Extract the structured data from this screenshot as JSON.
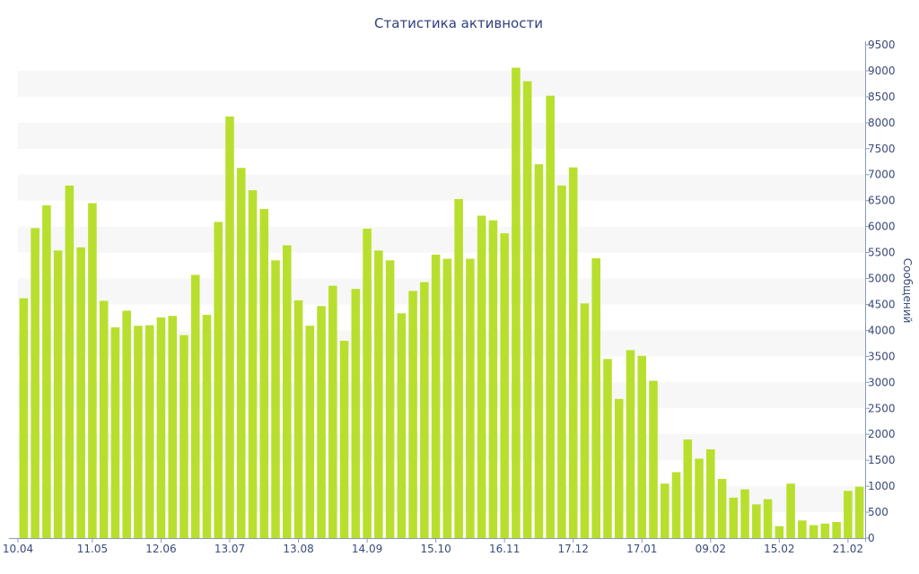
{
  "chart_data": {
    "type": "bar",
    "title": "Статистика активности",
    "ylabel": "Сообщений",
    "xlabel": "",
    "ylim": [
      0,
      9500
    ],
    "y_ticks": [
      0,
      500,
      1000,
      1500,
      2000,
      2500,
      3000,
      3500,
      4000,
      4500,
      5000,
      5500,
      6000,
      6500,
      7000,
      7500,
      8000,
      8500,
      9000,
      9500
    ],
    "x_tick_labels": [
      {
        "label": "10.04",
        "bar_index": 0
      },
      {
        "label": "11.05",
        "bar_index": 6
      },
      {
        "label": "12.06",
        "bar_index": 12
      },
      {
        "label": "13.07",
        "bar_index": 18
      },
      {
        "label": "13.08",
        "bar_index": 24
      },
      {
        "label": "14.09",
        "bar_index": 30
      },
      {
        "label": "15.10",
        "bar_index": 36
      },
      {
        "label": "16.11",
        "bar_index": 42
      },
      {
        "label": "17.12",
        "bar_index": 48
      },
      {
        "label": "17.01",
        "bar_index": 54
      },
      {
        "label": "09.02",
        "bar_index": 60
      },
      {
        "label": "15.02",
        "bar_index": 66
      },
      {
        "label": "21.02",
        "bar_index": 72
      }
    ],
    "values": [
      4620,
      5970,
      6410,
      5540,
      6790,
      5600,
      6450,
      4570,
      4060,
      4380,
      4090,
      4100,
      4250,
      4280,
      3910,
      5070,
      4300,
      6090,
      8120,
      7130,
      6700,
      6340,
      5350,
      5640,
      4580,
      4090,
      4470,
      4860,
      3800,
      4800,
      5960,
      5540,
      5350,
      4330,
      4760,
      4930,
      5460,
      5380,
      6530,
      5380,
      6210,
      6120,
      5870,
      9060,
      8800,
      7200,
      8520,
      6790,
      7140,
      4520,
      5390,
      3450,
      2680,
      3620,
      3510,
      3030,
      1050,
      1270,
      1900,
      1530,
      1710,
      1140,
      780,
      940,
      650,
      750,
      230,
      1050,
      340,
      250,
      280,
      310,
      910,
      990
    ],
    "grid": true,
    "legend": "none",
    "bar_color": "#b8df2e",
    "band_color": "#f7f7f7",
    "text_color": "#3a4a7a",
    "title_color": "#2f3f7f"
  }
}
